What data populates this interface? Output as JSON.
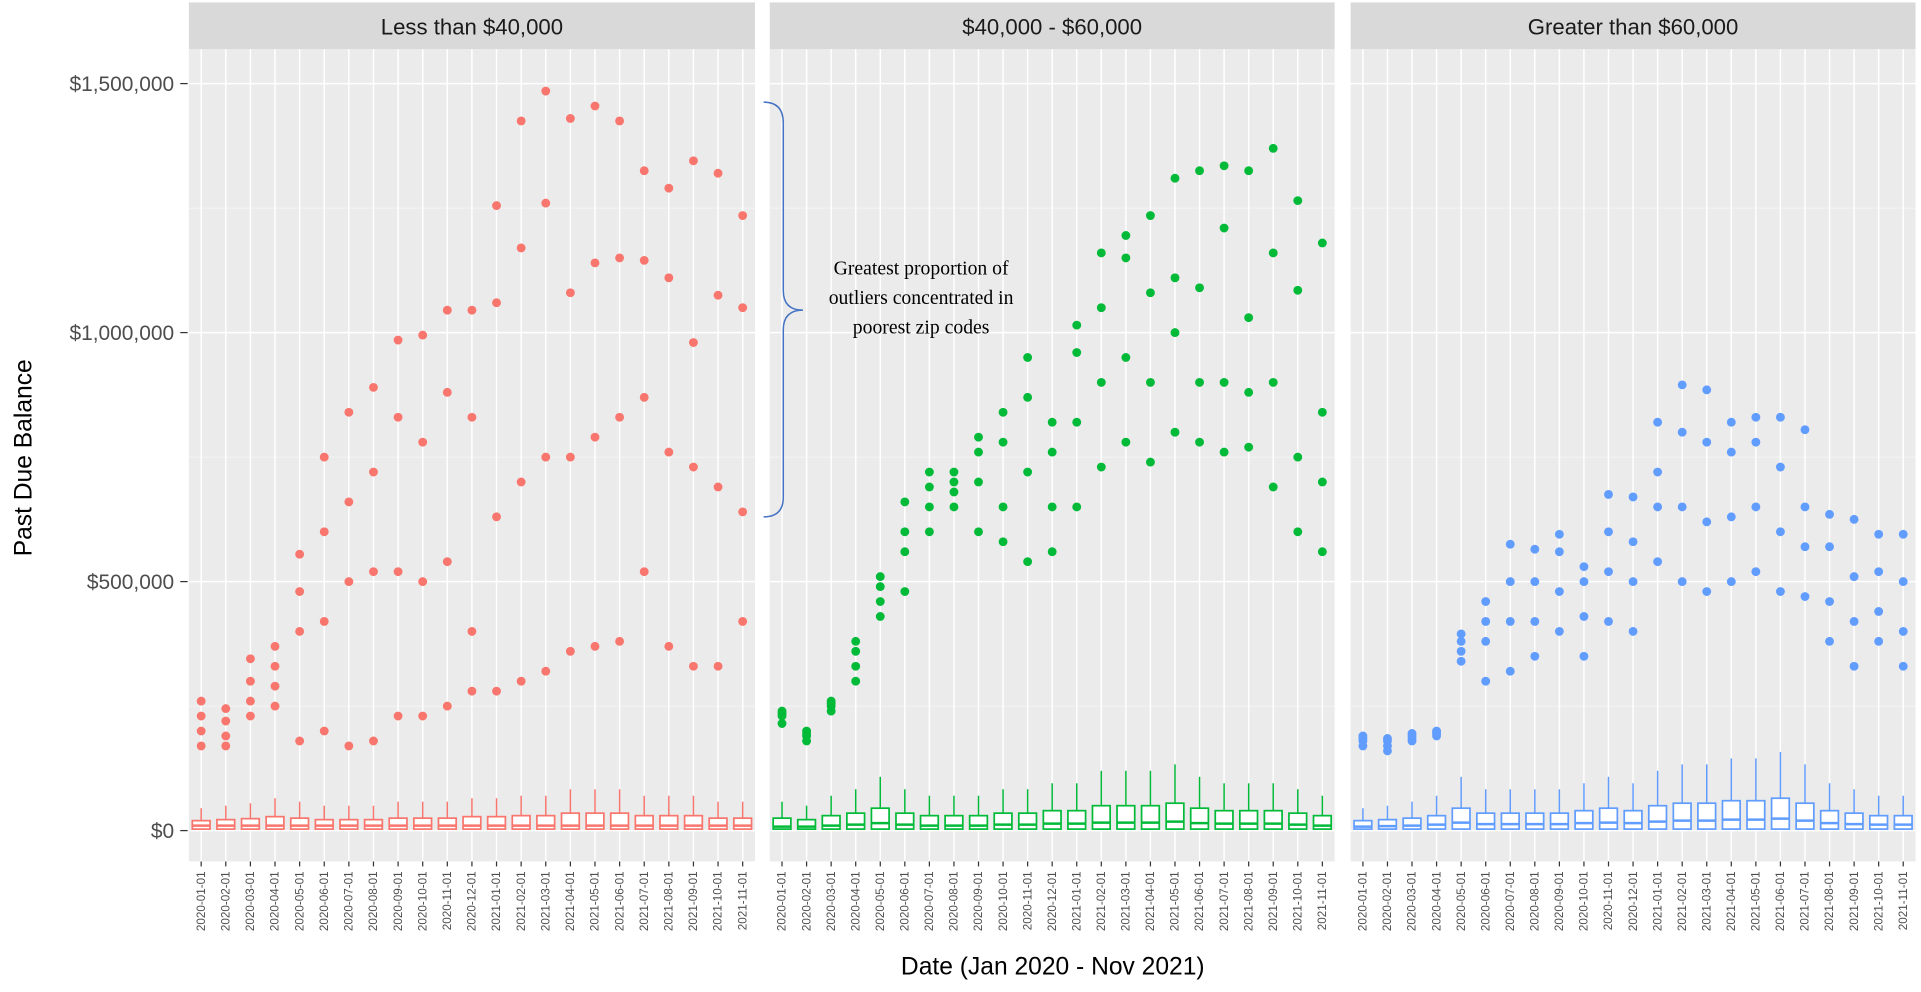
{
  "chart_data": {
    "type": "boxplot",
    "ylabel": "Past Due Balance",
    "xlabel": "Date (Jan 2020 - Nov 2021)",
    "annotation": [
      "Greatest proportion of",
      "outliers concentrated in",
      "poorest zip codes"
    ],
    "categories": [
      "2020-01-01",
      "2020-02-01",
      "2020-03-01",
      "2020-04-01",
      "2020-05-01",
      "2020-06-01",
      "2020-07-01",
      "2020-08-01",
      "2020-09-01",
      "2020-10-01",
      "2020-11-01",
      "2020-12-01",
      "2021-01-01",
      "2021-02-01",
      "2021-03-01",
      "2021-04-01",
      "2021-05-01",
      "2021-06-01",
      "2021-07-01",
      "2021-08-01",
      "2021-09-01",
      "2021-10-01",
      "2021-11-01"
    ],
    "ylim": [
      -62000,
      1569000
    ],
    "yticks": [
      {
        "value": 0,
        "label": "$0"
      },
      {
        "value": 500000,
        "label": "$500,000"
      },
      {
        "value": 1000000,
        "label": "$1,000,000"
      },
      {
        "value": 1500000,
        "label": "$1,500,000"
      }
    ],
    "grid": true,
    "facets": [
      {
        "name": "Less than $40,000",
        "color": "#f8766d",
        "q1": [
          3000,
          3000,
          3000,
          3000,
          3000,
          3000,
          3000,
          3000,
          3000,
          3000,
          3000,
          3000,
          3000,
          3000,
          3000,
          3000,
          3000,
          3000,
          3000,
          3000,
          3000,
          3000,
          3000
        ],
        "median": [
          10000,
          10000,
          10000,
          10000,
          10000,
          10000,
          10000,
          10000,
          10000,
          10000,
          10000,
          10000,
          10000,
          10000,
          10000,
          10000,
          10000,
          10000,
          10000,
          10000,
          10000,
          10000,
          10000
        ],
        "q3": [
          20000,
          22000,
          24000,
          28000,
          25000,
          22000,
          22000,
          22000,
          25000,
          25000,
          25000,
          28000,
          28000,
          30000,
          30000,
          35000,
          35000,
          35000,
          30000,
          30000,
          30000,
          25000,
          25000
        ],
        "whisker": [
          45000,
          50000,
          55000,
          65000,
          58000,
          50000,
          50000,
          50000,
          58000,
          58000,
          58000,
          65000,
          65000,
          70000,
          70000,
          83000,
          83000,
          83000,
          70000,
          70000,
          70000,
          58000,
          58000
        ],
        "outliers": [
          [
            170000,
            200000,
            230000,
            260000
          ],
          [
            170000,
            190000,
            220000,
            245000
          ],
          [
            230000,
            260000,
            300000,
            345000
          ],
          [
            250000,
            290000,
            330000,
            370000
          ],
          [
            180000,
            400000,
            480000,
            555000
          ],
          [
            200000,
            420000,
            600000,
            750000
          ],
          [
            170000,
            500000,
            660000,
            840000
          ],
          [
            180000,
            520000,
            720000,
            890000
          ],
          [
            230000,
            520000,
            830000,
            985000
          ],
          [
            230000,
            500000,
            780000,
            995000
          ],
          [
            250000,
            540000,
            880000,
            1045000
          ],
          [
            280000,
            400000,
            830000,
            1045000
          ],
          [
            280000,
            630000,
            1060000,
            1255000
          ],
          [
            300000,
            700000,
            1170000,
            1425000
          ],
          [
            320000,
            750000,
            1260000,
            1485000
          ],
          [
            360000,
            750000,
            1080000,
            1430000
          ],
          [
            370000,
            790000,
            1140000,
            1455000
          ],
          [
            380000,
            830000,
            1150000,
            1425000
          ],
          [
            520000,
            870000,
            1145000,
            1325000
          ],
          [
            370000,
            760000,
            1110000,
            1290000
          ],
          [
            330000,
            730000,
            980000,
            1345000
          ],
          [
            330000,
            690000,
            1075000,
            1320000
          ],
          [
            420000,
            640000,
            1050000,
            1235000
          ]
        ]
      },
      {
        "name": "$40,000 - $60,000",
        "color": "#00ba38",
        "q1": [
          3000,
          3000,
          3000,
          3000,
          3000,
          3000,
          3000,
          3000,
          3000,
          3000,
          3000,
          3000,
          3000,
          3000,
          3000,
          3000,
          3000,
          3000,
          3000,
          3000,
          3000,
          3000,
          3000
        ],
        "median": [
          8000,
          8000,
          10000,
          12000,
          15000,
          12000,
          10000,
          10000,
          10000,
          12000,
          12000,
          14000,
          14000,
          16000,
          16000,
          16000,
          18000,
          15000,
          14000,
          14000,
          14000,
          12000,
          10000
        ],
        "q3": [
          25000,
          22000,
          30000,
          35000,
          45000,
          35000,
          30000,
          30000,
          30000,
          35000,
          35000,
          40000,
          40000,
          50000,
          50000,
          50000,
          55000,
          45000,
          40000,
          40000,
          40000,
          35000,
          30000
        ],
        "whisker": [
          58000,
          50000,
          70000,
          83000,
          108000,
          83000,
          70000,
          70000,
          70000,
          83000,
          83000,
          95000,
          95000,
          120000,
          120000,
          120000,
          133000,
          108000,
          95000,
          95000,
          95000,
          83000,
          70000
        ],
        "outliers": [
          [
            215000,
            230000,
            235000,
            240000
          ],
          [
            180000,
            190000,
            195000,
            200000
          ],
          [
            240000,
            250000,
            255000,
            260000
          ],
          [
            300000,
            330000,
            360000,
            380000
          ],
          [
            430000,
            460000,
            490000,
            510000
          ],
          [
            480000,
            560000,
            600000,
            660000
          ],
          [
            600000,
            650000,
            690000,
            720000
          ],
          [
            650000,
            680000,
            700000,
            720000
          ],
          [
            600000,
            700000,
            760000,
            790000
          ],
          [
            580000,
            650000,
            780000,
            840000
          ],
          [
            540000,
            720000,
            870000,
            950000
          ],
          [
            560000,
            650000,
            760000,
            820000
          ],
          [
            650000,
            820000,
            960000,
            1015000
          ],
          [
            730000,
            900000,
            1050000,
            1160000
          ],
          [
            780000,
            950000,
            1150000,
            1195000
          ],
          [
            740000,
            900000,
            1080000,
            1235000
          ],
          [
            800000,
            1000000,
            1110000,
            1310000
          ],
          [
            780000,
            900000,
            1090000,
            1325000
          ],
          [
            760000,
            900000,
            1210000,
            1335000
          ],
          [
            770000,
            880000,
            1030000,
            1325000
          ],
          [
            690000,
            900000,
            1160000,
            1370000
          ],
          [
            600000,
            750000,
            1085000,
            1265000
          ],
          [
            560000,
            700000,
            840000,
            1180000
          ]
        ]
      },
      {
        "name": "Greater than $60,000",
        "color": "#619cff",
        "q1": [
          3000,
          3000,
          3000,
          3000,
          3000,
          3000,
          3000,
          3000,
          3000,
          3000,
          3000,
          3000,
          3000,
          3000,
          3000,
          3000,
          3000,
          3000,
          3000,
          3000,
          3000,
          3000,
          3000
        ],
        "median": [
          8000,
          9000,
          10000,
          12000,
          16000,
          13000,
          13000,
          13000,
          13000,
          15000,
          16000,
          15000,
          18000,
          20000,
          20000,
          22000,
          22000,
          24000,
          20000,
          15000,
          13000,
          12000,
          12000
        ],
        "q3": [
          20000,
          22000,
          25000,
          30000,
          45000,
          35000,
          35000,
          35000,
          35000,
          40000,
          45000,
          40000,
          50000,
          55000,
          55000,
          60000,
          60000,
          65000,
          55000,
          40000,
          35000,
          30000,
          30000
        ],
        "whisker": [
          45000,
          50000,
          58000,
          70000,
          108000,
          83000,
          83000,
          83000,
          83000,
          95000,
          108000,
          95000,
          120000,
          133000,
          133000,
          145000,
          145000,
          158000,
          133000,
          95000,
          83000,
          70000,
          70000
        ],
        "outliers": [
          [
            170000,
            180000,
            185000,
            190000
          ],
          [
            160000,
            170000,
            180000,
            185000
          ],
          [
            180000,
            185000,
            190000,
            195000
          ],
          [
            190000,
            195000,
            198000,
            200000
          ],
          [
            340000,
            360000,
            380000,
            395000
          ],
          [
            300000,
            380000,
            420000,
            460000
          ],
          [
            320000,
            420000,
            500000,
            575000
          ],
          [
            350000,
            420000,
            500000,
            565000
          ],
          [
            400000,
            480000,
            560000,
            595000
          ],
          [
            350000,
            430000,
            500000,
            530000
          ],
          [
            420000,
            520000,
            600000,
            675000
          ],
          [
            400000,
            500000,
            580000,
            670000
          ],
          [
            540000,
            650000,
            720000,
            820000
          ],
          [
            500000,
            650000,
            800000,
            895000
          ],
          [
            480000,
            620000,
            780000,
            885000
          ],
          [
            500000,
            630000,
            760000,
            820000
          ],
          [
            520000,
            650000,
            780000,
            830000
          ],
          [
            480000,
            600000,
            730000,
            830000
          ],
          [
            470000,
            570000,
            650000,
            805000
          ],
          [
            380000,
            460000,
            570000,
            635000
          ],
          [
            330000,
            420000,
            510000,
            625000
          ],
          [
            380000,
            440000,
            520000,
            595000
          ],
          [
            330000,
            400000,
            500000,
            595000
          ]
        ]
      }
    ]
  }
}
